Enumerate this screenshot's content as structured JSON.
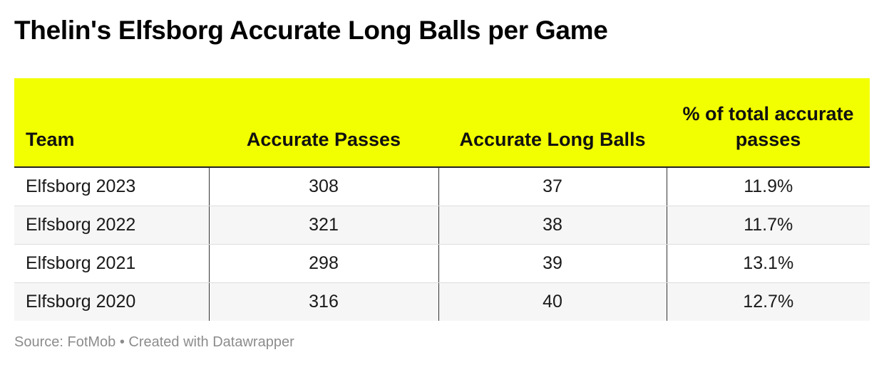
{
  "chart_data": {
    "type": "table",
    "title": "Thelin's Elfsborg Accurate Long Balls per Game",
    "header_color": "#f2ff00",
    "columns": [
      "Team",
      "Accurate Passes",
      "Accurate Long Balls",
      "% of total accurate passes"
    ],
    "rows": [
      {
        "team": "Elfsborg 2023",
        "accurate_passes": "308",
        "accurate_long_balls": "37",
        "pct_of_total": "11.9%"
      },
      {
        "team": "Elfsborg 2022",
        "accurate_passes": "321",
        "accurate_long_balls": "38",
        "pct_of_total": "11.7%"
      },
      {
        "team": "Elfsborg 2021",
        "accurate_passes": "298",
        "accurate_long_balls": "39",
        "pct_of_total": "13.1%"
      },
      {
        "team": "Elfsborg 2020",
        "accurate_passes": "316",
        "accurate_long_balls": "40",
        "pct_of_total": "12.7%"
      }
    ],
    "source": "Source: FotMob • Created with Datawrapper"
  }
}
